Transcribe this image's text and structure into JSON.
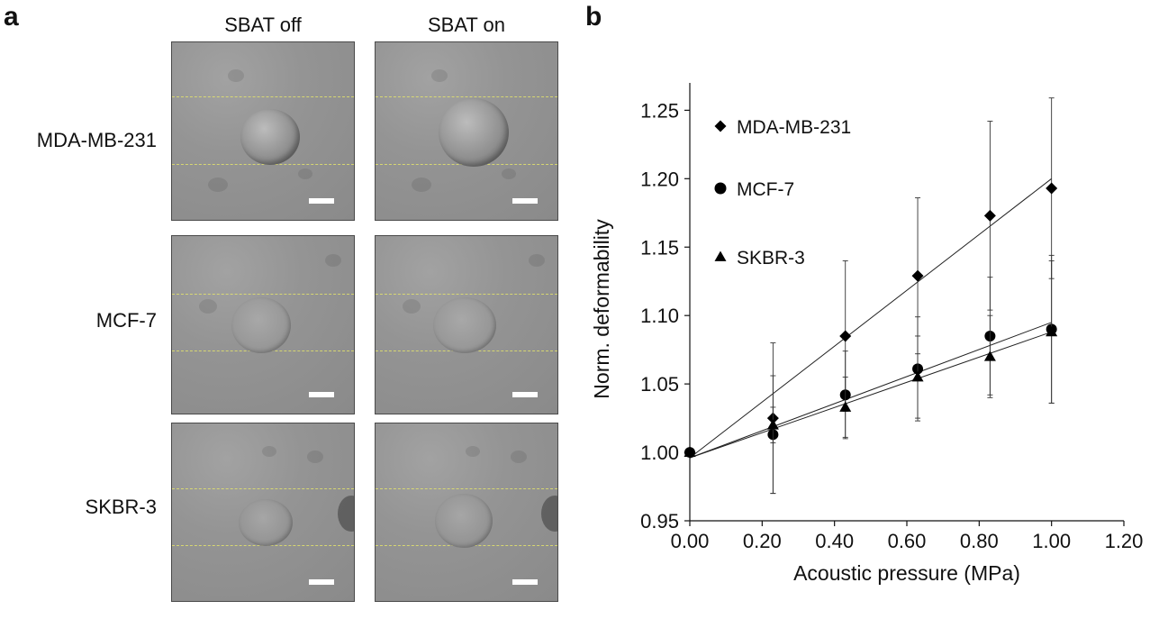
{
  "panel_a": {
    "letter": "a",
    "columns": [
      "SBAT off",
      "SBAT on"
    ],
    "rows": [
      "MDA-MB-231",
      "MCF-7",
      "SKBR-3"
    ]
  },
  "panel_b": {
    "letter": "b"
  },
  "chart_data": {
    "type": "scatter",
    "xlabel": "Acoustic pressure (MPa)",
    "ylabel": "Norm. deformability",
    "xlim": [
      0.0,
      1.2
    ],
    "ylim": [
      0.95,
      1.27
    ],
    "xticks": [
      "0.00",
      "0.20",
      "0.40",
      "0.60",
      "0.80",
      "1.00",
      "1.20"
    ],
    "yticks": [
      "0.95",
      "1.00",
      "1.05",
      "1.10",
      "1.15",
      "1.20",
      "1.25"
    ],
    "grid": false,
    "legend_position": "top-left",
    "series": [
      {
        "name": "MDA-MB-231",
        "marker": "diamond",
        "x": [
          0.0,
          0.23,
          0.43,
          0.63,
          0.83,
          1.0
        ],
        "y": [
          1.0,
          1.025,
          1.085,
          1.129,
          1.173,
          1.193
        ],
        "err": [
          0.0,
          0.055,
          0.055,
          0.057,
          0.069,
          0.066
        ],
        "fit": [
          [
            0.0,
            0.996
          ],
          [
            1.0,
            1.2
          ]
        ]
      },
      {
        "name": "MCF-7",
        "marker": "circle",
        "x": [
          0.0,
          0.23,
          0.43,
          0.63,
          0.83,
          1.0
        ],
        "y": [
          1.0,
          1.013,
          1.042,
          1.061,
          1.085,
          1.09
        ],
        "err": [
          0.0,
          0.043,
          0.032,
          0.038,
          0.043,
          0.054
        ],
        "fit": [
          [
            0.0,
            0.996
          ],
          [
            1.0,
            1.095
          ]
        ]
      },
      {
        "name": "SKBR-3",
        "marker": "triangle",
        "x": [
          0.0,
          0.23,
          0.43,
          0.63,
          0.83,
          1.0
        ],
        "y": [
          1.0,
          1.02,
          1.033,
          1.055,
          1.07,
          1.088
        ],
        "err": [
          0.0,
          0.013,
          0.022,
          0.03,
          0.03,
          0.052
        ],
        "fit": [
          [
            0.0,
            0.996
          ],
          [
            1.0,
            1.088
          ]
        ]
      }
    ]
  }
}
